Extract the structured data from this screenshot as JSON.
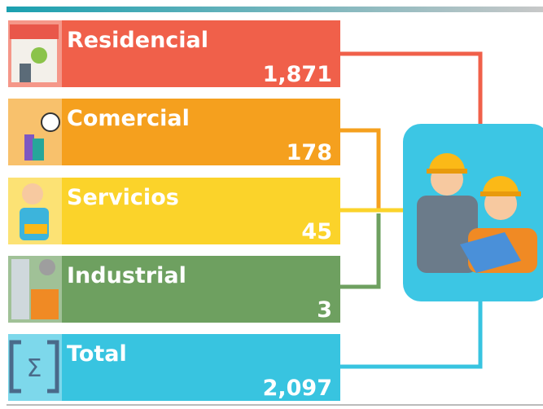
{
  "items": [
    {
      "label": "Residencial",
      "value": "1,871"
    },
    {
      "label": "Comercial",
      "value": "178"
    },
    {
      "label": "Servicios",
      "value": "45"
    },
    {
      "label": "Industrial",
      "value": "3"
    },
    {
      "label": "Total",
      "value": "2,097"
    }
  ]
}
